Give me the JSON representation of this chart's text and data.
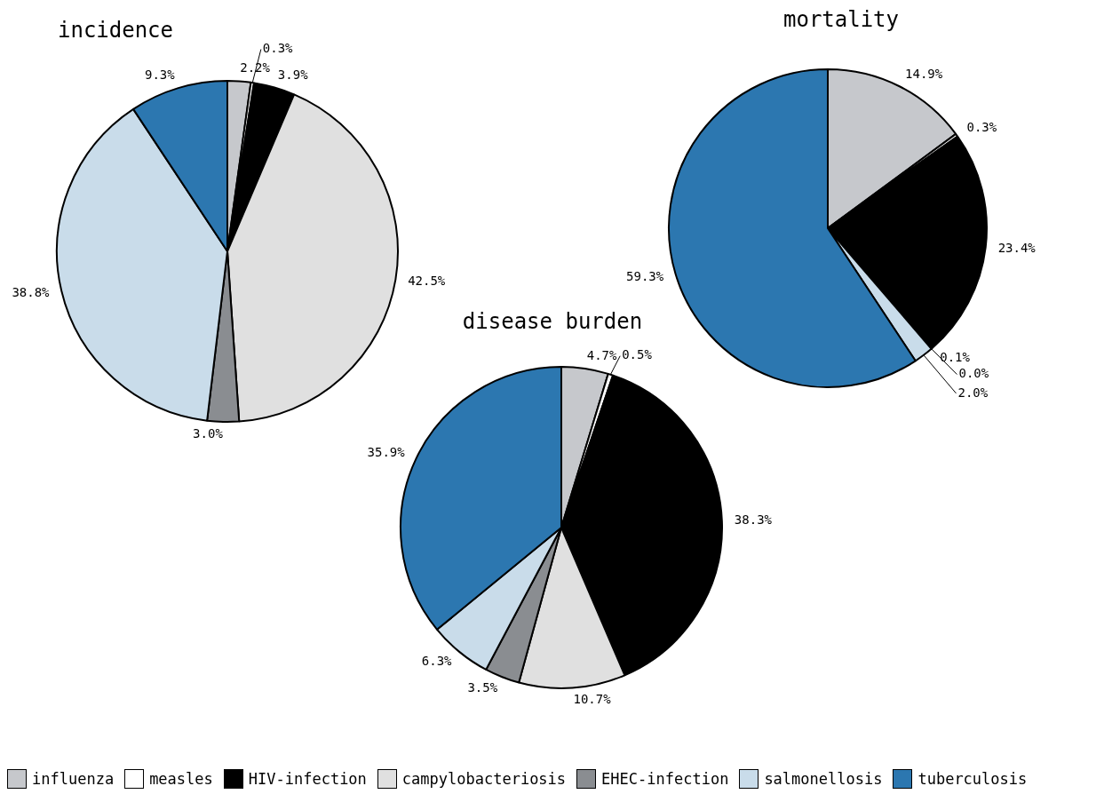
{
  "chart_data": [
    {
      "type": "pie",
      "title": "incidence",
      "categories": [
        "influenza",
        "measles",
        "HIV-infection",
        "campylobacteriosis",
        "EHEC-infection",
        "salmonellosis",
        "tuberculosis"
      ],
      "values": [
        2.2,
        0.3,
        3.9,
        42.5,
        3.0,
        38.8,
        9.3
      ],
      "value_labels": [
        "2.2%",
        "0.3%",
        "3.9%",
        "42.5%",
        "3.0%",
        "38.8%",
        "9.3%"
      ],
      "colors": [
        "#c6c8cc",
        "#ffffff",
        "#000000",
        "#e0e0e0",
        "#8a8d91",
        "#c9dcea",
        "#2c77b0"
      ],
      "legend": "bottom"
    },
    {
      "type": "pie",
      "title": "mortality",
      "categories": [
        null,
        null,
        null,
        null,
        null,
        null,
        null
      ],
      "values": [
        14.9,
        0.3,
        23.4,
        0.1,
        0.0,
        2.0,
        59.3
      ],
      "value_labels": [
        "14.9%",
        "0.3%",
        "23.4%",
        "0.1%",
        "0.0%",
        "2.0%",
        "59.3%"
      ],
      "colors": [
        "#c6c8cc",
        "#ffffff",
        "#000000",
        "#e0e0e0",
        "#8a8d91",
        "#c9dcea",
        "#2c77b0"
      ]
    },
    {
      "type": "pie",
      "title": "disease burden",
      "categories": [
        null,
        null,
        null,
        null,
        null,
        null,
        null
      ],
      "values": [
        4.7,
        0.5,
        38.3,
        10.7,
        3.5,
        6.3,
        35.9
      ],
      "value_labels": [
        "4.7%",
        "0.5%",
        "38.3%",
        "10.7%",
        "3.5%",
        "6.3%",
        "35.9%"
      ],
      "colors": [
        "#c6c8cc",
        "#ffffff",
        "#000000",
        "#e0e0e0",
        "#8a8d91",
        "#c9dcea",
        "#2c77b0"
      ]
    }
  ]
}
